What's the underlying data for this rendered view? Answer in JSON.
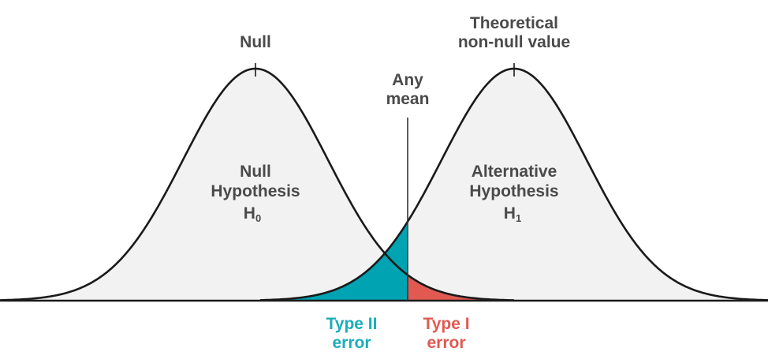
{
  "colors": {
    "curve_fill": "#f2f2f2",
    "curve_stroke": "#1a1a1a",
    "type2_region": "#00a3b2",
    "type1_region": "#e05a51",
    "mean_line": "#333333",
    "label_text": "#4a4a4a",
    "type2_text": "#1aaeb9",
    "type1_text": "#e05a51"
  },
  "labels": {
    "null_peak": "Null",
    "alt_peak_line1": "Theoretical",
    "alt_peak_line2": "non-null value",
    "mean_line1": "Any",
    "mean_line2": "mean",
    "null_hyp_line1": "Null",
    "null_hyp_line2": "Hypothesis",
    "null_hyp_symbol": "H",
    "null_hyp_subscript": "0",
    "alt_hyp_line1": "Alternative",
    "alt_hyp_line2": "Hypothesis",
    "alt_hyp_symbol": "H",
    "alt_hyp_subscript": "1",
    "type2_line1": "Type II",
    "type2_line2": "error",
    "type1_line1": "Type I",
    "type1_line2": "error"
  }
}
